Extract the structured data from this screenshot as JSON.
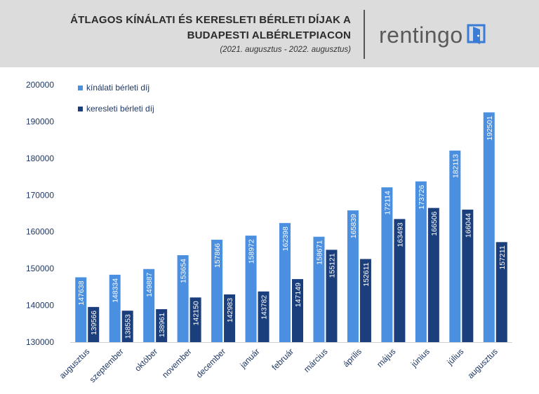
{
  "header": {
    "title_line1": "ÁTLAGOS KÍNÁLATI ÉS KERESLETI BÉRLETI DÍJAK A",
    "title_line2": "BUDAPESTI ALBÉRLETPIACON",
    "subtitle": "(2021. augusztus - 2022. augusztus)",
    "logo_text": "rentingo",
    "logo_icon": "rentingo-door-icon"
  },
  "colors": {
    "offer": "#4a8fe0",
    "demand": "#1a3f7c",
    "axis_text": "#1f3864",
    "header_bg": "#dcdcdc"
  },
  "chart_data": {
    "type": "bar",
    "categories": [
      "augusztus",
      "szeptember",
      "október",
      "november",
      "december",
      "január",
      "február",
      "március",
      "április",
      "május",
      "június",
      "július",
      "augusztus"
    ],
    "series": [
      {
        "name": "kínálati bérleti díj",
        "values": [
          147638,
          148334,
          149887,
          153654,
          157866,
          158972,
          162398,
          158671,
          165839,
          172114,
          173726,
          182113,
          192501
        ]
      },
      {
        "name": "keresleti bérleti díj",
        "values": [
          139566,
          138553,
          138961,
          142150,
          142983,
          143782,
          147149,
          155121,
          152611,
          163493,
          166506,
          166044,
          157211
        ]
      }
    ],
    "ylim": [
      130000,
      200000
    ],
    "yticks": [
      130000,
      140000,
      150000,
      160000,
      170000,
      180000,
      190000,
      200000
    ],
    "legend_position": "top-left",
    "grid": false
  }
}
